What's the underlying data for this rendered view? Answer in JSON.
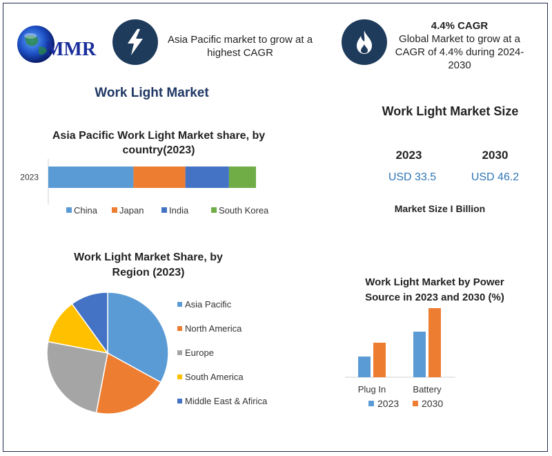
{
  "logo": {
    "text": "MMR"
  },
  "highlights": [
    {
      "icon": "lightning-bolt-icon",
      "lines": [
        "Asia Pacific market to grow at a",
        "highest CAGR"
      ]
    },
    {
      "icon": "flame-icon",
      "title": "4.4% CAGR",
      "lines": [
        "Global Market to grow at a",
        "CAGR of 4.4% during 2024-",
        "2030"
      ]
    }
  ],
  "page_title": "Work Light Market",
  "market_size": {
    "title": "Work Light Market Size",
    "years": [
      "2023",
      "2030"
    ],
    "values": [
      "USD 33.5",
      "USD 46.2"
    ],
    "unit_label": "Market Size I Billion"
  },
  "colors": {
    "blue": "#5b9bd5",
    "orange": "#ed7d31",
    "gray": "#a5a5a5",
    "yellow": "#ffc000",
    "navy": "#4472c4",
    "green": "#70ad47",
    "dark": "#1f3b5c",
    "value_blue": "#2e75b6"
  },
  "chart_data": [
    {
      "type": "bar",
      "orientation": "horizontal-stacked",
      "title_lines": [
        "Asia Pacific Work Light Market share, by",
        "country(2023)"
      ],
      "categories": [
        "2023"
      ],
      "series": [
        {
          "name": "China",
          "values": [
            41
          ]
        },
        {
          "name": "Japan",
          "values": [
            25
          ]
        },
        {
          "name": "India",
          "values": [
            21
          ]
        },
        {
          "name": "South Korea",
          "values": [
            13
          ]
        }
      ],
      "legend": "bottom"
    },
    {
      "type": "pie",
      "title_lines": [
        "Work Light Market Share, by",
        "Region (2023)"
      ],
      "labels": [
        "Asia Pacific",
        "North America",
        "Europe",
        "South America",
        "Middle East & Afirica"
      ],
      "values": [
        33,
        20,
        25,
        12,
        10
      ],
      "legend": "right"
    },
    {
      "type": "bar",
      "title_lines": [
        "Work Light Market by  Power",
        "Source in 2023 and 2030 (%)"
      ],
      "categories": [
        "Plug In",
        "Battery"
      ],
      "series": [
        {
          "name": "2023",
          "values": [
            30,
            66
          ]
        },
        {
          "name": "2030",
          "values": [
            50,
            100
          ]
        }
      ],
      "ylim": [
        0,
        100
      ],
      "legend": "bottom"
    }
  ]
}
